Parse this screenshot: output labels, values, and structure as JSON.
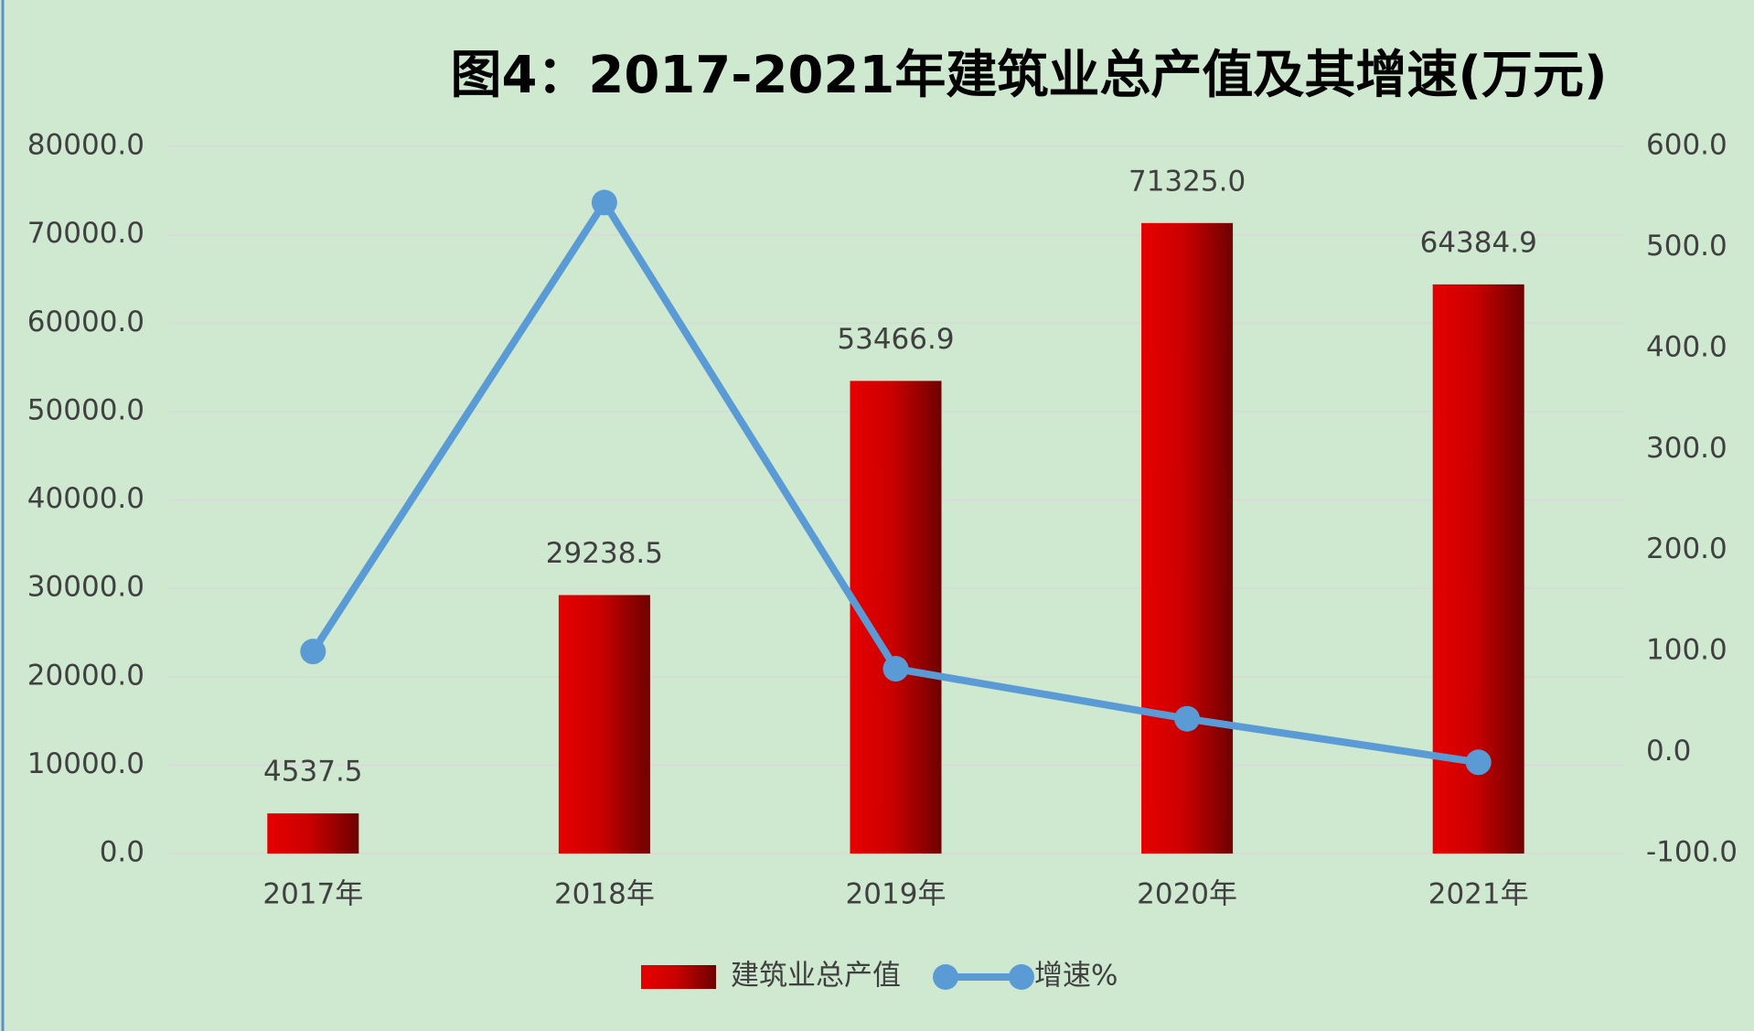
{
  "chart_data": {
    "type": "bar",
    "title": "图4：2017-2021年建筑业总产值及其增速(万元)",
    "categories": [
      "2017年",
      "2018年",
      "2019年",
      "2020年",
      "2021年"
    ],
    "series": [
      {
        "name": "建筑业总产值",
        "type": "bar",
        "color": "#e00000",
        "values": [
          4537.5,
          29238.5,
          53466.9,
          71325.0,
          64384.9
        ],
        "value_labels": [
          "4537.5",
          "29238.5",
          "53466.9",
          "71325.0",
          "64384.9"
        ]
      },
      {
        "name": "增速%",
        "type": "line",
        "axis": "y2",
        "color": "#5b9bd5",
        "values": [
          100,
          544.4,
          82.9,
          33.4,
          -9.7
        ]
      }
    ],
    "ylim": [
      0,
      80000
    ],
    "yticks": [
      {
        "value": 0,
        "label": "0.0"
      },
      {
        "value": 10000,
        "label": "10000.0"
      },
      {
        "value": 20000,
        "label": "20000.0"
      },
      {
        "value": 30000,
        "label": "30000.0"
      },
      {
        "value": 40000,
        "label": "40000.0"
      },
      {
        "value": 50000,
        "label": "50000.0"
      },
      {
        "value": 60000,
        "label": "60000.0"
      },
      {
        "value": 70000,
        "label": "70000.0"
      },
      {
        "value": 80000,
        "label": "80000.0"
      }
    ],
    "y2lim": [
      -100,
      600
    ],
    "y2ticks": [
      {
        "value": -100,
        "label": "-100.0"
      },
      {
        "value": 0,
        "label": "0.0"
      },
      {
        "value": 100,
        "label": "100.0"
      },
      {
        "value": 200,
        "label": "200.0"
      },
      {
        "value": 300,
        "label": "300.0"
      },
      {
        "value": 400,
        "label": "400.0"
      },
      {
        "value": 500,
        "label": "500.0"
      },
      {
        "value": 600,
        "label": "600.0"
      }
    ],
    "grid": true,
    "legend": "bottom"
  }
}
